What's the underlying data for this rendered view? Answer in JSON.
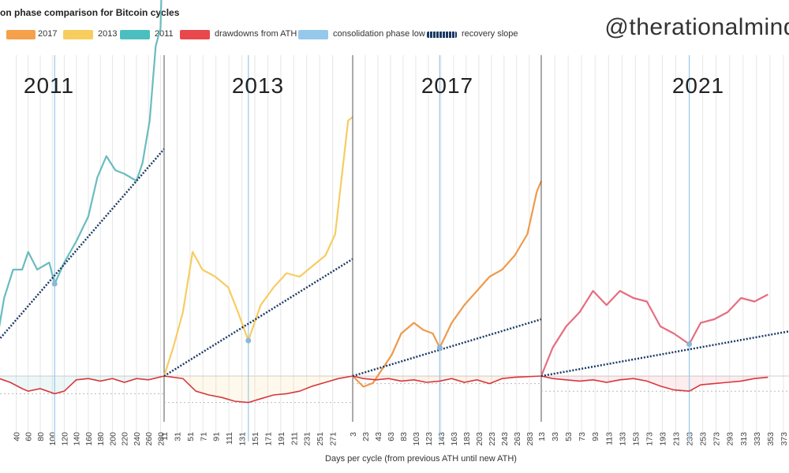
{
  "chart_data": {
    "type": "line",
    "title": "on phase comparison for Bitcoin cycles",
    "xlabel": "Days per cycle (from previous ATH until new ATH)",
    "handle": "@therationalmind",
    "legend": [
      {
        "name": "2017",
        "color": "#f5a04a"
      },
      {
        "name": "2013",
        "color": "#f7cd5e"
      },
      {
        "name": "2011",
        "color": "#4bbfbf"
      },
      {
        "name": "drawdowns from ATH",
        "color": "#e8474c"
      },
      {
        "name": "consolidation phase low",
        "color": "#96c8eb"
      },
      {
        "name": "recovery slope",
        "color": "#1c3a63"
      }
    ],
    "panels": [
      {
        "label": "2011",
        "color": "#6abcbf",
        "xstart": 0,
        "xstep": 20,
        "ticks": [
          "40",
          "60",
          "80",
          "100",
          "120",
          "140",
          "160",
          "180",
          "200",
          "220",
          "240",
          "260",
          "280"
        ],
        "consolidation_low": 104,
        "recovery_slope": {
          "from": [
            0,
            0.08
          ],
          "to": [
            286,
            0.64
          ]
        },
        "growth": [
          [
            0,
            0.0
          ],
          [
            10,
            0.12
          ],
          [
            20,
            0.22
          ],
          [
            35,
            0.3
          ],
          [
            50,
            0.3
          ],
          [
            60,
            0.35
          ],
          [
            75,
            0.3
          ],
          [
            95,
            0.32
          ],
          [
            104,
            0.26
          ],
          [
            120,
            0.32
          ],
          [
            140,
            0.38
          ],
          [
            160,
            0.45
          ],
          [
            175,
            0.56
          ],
          [
            190,
            0.62
          ],
          [
            205,
            0.58
          ],
          [
            220,
            0.57
          ],
          [
            240,
            0.55
          ],
          [
            250,
            0.6
          ],
          [
            262,
            0.72
          ],
          [
            272,
            0.93
          ],
          [
            280,
            0.98
          ],
          [
            286,
            1.35
          ]
        ],
        "drawdown": [
          [
            0,
            0.0
          ],
          [
            30,
            -0.05
          ],
          [
            50,
            -0.1
          ],
          [
            60,
            -0.12
          ],
          [
            80,
            -0.1
          ],
          [
            104,
            -0.14
          ],
          [
            120,
            -0.12
          ],
          [
            140,
            -0.03
          ],
          [
            160,
            -0.02
          ],
          [
            180,
            -0.04
          ],
          [
            200,
            -0.02
          ],
          [
            220,
            -0.05
          ],
          [
            240,
            -0.02
          ],
          [
            260,
            -0.03
          ],
          [
            286,
            0.0
          ]
        ]
      },
      {
        "label": "2013",
        "color": "#f6cd61",
        "xstart": 11,
        "xstep": 20,
        "ticks": [
          "11",
          "31",
          "51",
          "71",
          "91",
          "111",
          "131",
          "151",
          "171",
          "191",
          "211",
          "231",
          "251",
          "271"
        ],
        "consolidation_low": 141,
        "recovery_slope": {
          "from": [
            11,
            0.0
          ],
          "to": [
            302,
            0.33
          ]
        },
        "growth": [
          [
            11,
            0.0
          ],
          [
            25,
            0.08
          ],
          [
            40,
            0.18
          ],
          [
            55,
            0.35
          ],
          [
            70,
            0.3
          ],
          [
            90,
            0.28
          ],
          [
            110,
            0.25
          ],
          [
            125,
            0.18
          ],
          [
            141,
            0.1
          ],
          [
            160,
            0.2
          ],
          [
            180,
            0.25
          ],
          [
            200,
            0.29
          ],
          [
            220,
            0.28
          ],
          [
            240,
            0.31
          ],
          [
            260,
            0.34
          ],
          [
            275,
            0.4
          ],
          [
            285,
            0.56
          ],
          [
            295,
            0.72
          ],
          [
            302,
            0.73
          ]
        ],
        "drawdown": [
          [
            11,
            0.0
          ],
          [
            40,
            -0.02
          ],
          [
            60,
            -0.12
          ],
          [
            80,
            -0.15
          ],
          [
            100,
            -0.17
          ],
          [
            120,
            -0.2
          ],
          [
            141,
            -0.21
          ],
          [
            160,
            -0.18
          ],
          [
            180,
            -0.15
          ],
          [
            200,
            -0.14
          ],
          [
            220,
            -0.12
          ],
          [
            240,
            -0.08
          ],
          [
            260,
            -0.05
          ],
          [
            280,
            -0.02
          ],
          [
            302,
            0.0
          ]
        ]
      },
      {
        "label": "2017",
        "color": "#ee9a4c",
        "xstart": 3,
        "xstep": 20,
        "ticks": [
          "3",
          "23",
          "43",
          "63",
          "83",
          "103",
          "123",
          "143",
          "163",
          "183",
          "203",
          "223",
          "243",
          "263",
          "283"
        ],
        "consolidation_low": 141,
        "recovery_slope": {
          "from": [
            3,
            0.0
          ],
          "to": [
            302,
            0.16
          ]
        },
        "growth": [
          [
            3,
            0.0
          ],
          [
            20,
            -0.03
          ],
          [
            35,
            -0.02
          ],
          [
            50,
            0.02
          ],
          [
            65,
            0.06
          ],
          [
            80,
            0.12
          ],
          [
            100,
            0.15
          ],
          [
            115,
            0.13
          ],
          [
            130,
            0.12
          ],
          [
            141,
            0.08
          ],
          [
            160,
            0.15
          ],
          [
            180,
            0.2
          ],
          [
            200,
            0.24
          ],
          [
            220,
            0.28
          ],
          [
            240,
            0.3
          ],
          [
            260,
            0.34
          ],
          [
            280,
            0.4
          ],
          [
            295,
            0.52
          ],
          [
            302,
            0.55
          ]
        ],
        "drawdown": [
          [
            3,
            0.0
          ],
          [
            20,
            -0.02
          ],
          [
            40,
            -0.03
          ],
          [
            60,
            -0.02
          ],
          [
            80,
            -0.04
          ],
          [
            100,
            -0.03
          ],
          [
            120,
            -0.05
          ],
          [
            141,
            -0.04
          ],
          [
            160,
            -0.02
          ],
          [
            180,
            -0.05
          ],
          [
            200,
            -0.03
          ],
          [
            220,
            -0.06
          ],
          [
            240,
            -0.02
          ],
          [
            260,
            -0.01
          ],
          [
            302,
            0.0
          ]
        ]
      },
      {
        "label": "2021",
        "color": "#e66d7f",
        "xstart": 13,
        "xstep": 20,
        "ticks": [
          "13",
          "33",
          "53",
          "73",
          "93",
          "113",
          "133",
          "153",
          "173",
          "193",
          "213",
          "233",
          "253",
          "273",
          "293",
          "313",
          "333",
          "353",
          "373"
        ],
        "consolidation_low": 233,
        "recovery_slope": {
          "from": [
            13,
            0.0
          ],
          "to": [
            393,
            0.13
          ]
        },
        "growth": [
          [
            13,
            0.0
          ],
          [
            30,
            0.08
          ],
          [
            50,
            0.14
          ],
          [
            70,
            0.18
          ],
          [
            90,
            0.24
          ],
          [
            110,
            0.2
          ],
          [
            130,
            0.24
          ],
          [
            150,
            0.22
          ],
          [
            170,
            0.21
          ],
          [
            190,
            0.14
          ],
          [
            210,
            0.12
          ],
          [
            233,
            0.09
          ],
          [
            250,
            0.15
          ],
          [
            270,
            0.16
          ],
          [
            290,
            0.18
          ],
          [
            310,
            0.22
          ],
          [
            330,
            0.21
          ],
          [
            350,
            0.23
          ]
        ],
        "drawdown": [
          [
            13,
            0.0
          ],
          [
            30,
            -0.02
          ],
          [
            50,
            -0.03
          ],
          [
            70,
            -0.04
          ],
          [
            90,
            -0.03
          ],
          [
            110,
            -0.05
          ],
          [
            130,
            -0.03
          ],
          [
            150,
            -0.02
          ],
          [
            170,
            -0.04
          ],
          [
            190,
            -0.08
          ],
          [
            210,
            -0.11
          ],
          [
            233,
            -0.12
          ],
          [
            250,
            -0.07
          ],
          [
            270,
            -0.06
          ],
          [
            290,
            -0.05
          ],
          [
            310,
            -0.04
          ],
          [
            330,
            -0.02
          ],
          [
            350,
            -0.01
          ]
        ]
      }
    ],
    "grid": true
  }
}
